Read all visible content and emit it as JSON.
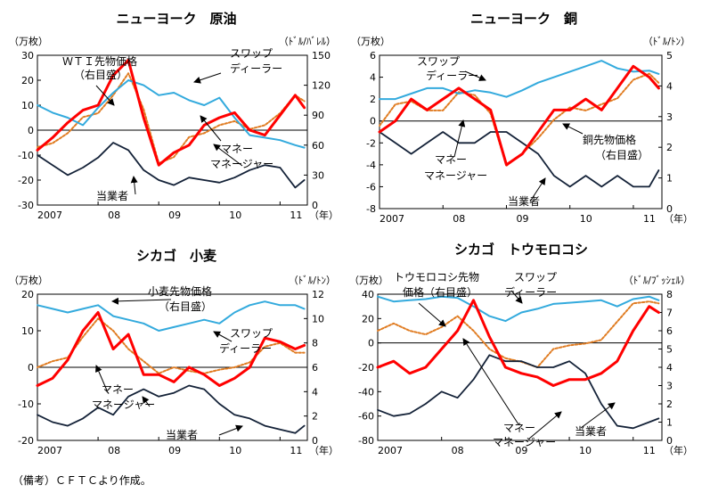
{
  "figure": {
    "note": "（備考）ＣＦＴＣより作成。",
    "x_axis_unit": "（年）",
    "colors": {
      "money_manager": "#ff0000",
      "swap_dealer": "#33aadd",
      "commercial": "#142238",
      "price": "#e07c22",
      "zero_line": "#000000"
    }
  },
  "chart_data": [
    {
      "id": "crude",
      "type": "line",
      "title": "ニューヨーク　原油",
      "left_unit": "（万枚）",
      "right_unit": "（ﾄﾞﾙ/ﾊﾞﾚﾙ）",
      "ylim_left": [
        -30,
        30
      ],
      "ylim_right": [
        0,
        150
      ],
      "yticks_left": [
        "30",
        "20",
        "10",
        "0",
        "-10",
        "-20",
        "-30"
      ],
      "yticks_right": [
        "150",
        "120",
        "90",
        "60",
        "30",
        "0"
      ],
      "xticks": [
        "2007",
        "08",
        "09",
        "10",
        "11"
      ],
      "x": [
        2007.0,
        2007.25,
        2007.5,
        2007.75,
        2008.0,
        2008.25,
        2008.5,
        2008.75,
        2009.0,
        2009.25,
        2009.5,
        2009.75,
        2010.0,
        2010.25,
        2010.5,
        2010.75,
        2011.0,
        2011.25,
        2011.4
      ],
      "series": [
        {
          "key": "money_manager",
          "values": [
            -8,
            -3,
            3,
            8,
            10,
            22,
            28,
            5,
            -14,
            -9,
            -6,
            2,
            5,
            7,
            0,
            -2,
            6,
            14,
            9
          ]
        },
        {
          "key": "swap_dealer",
          "values": [
            10,
            7,
            5,
            2,
            9,
            15,
            20,
            18,
            14,
            15,
            12,
            10,
            13,
            5,
            -2,
            -3,
            -4,
            -6,
            -7
          ]
        },
        {
          "key": "commercial",
          "values": [
            -10,
            -14,
            -18,
            -15,
            -11,
            -5,
            -8,
            -16,
            -20,
            -22,
            -19,
            -20,
            -21,
            -19,
            -16,
            -14,
            -15,
            -23,
            -20
          ]
        },
        {
          "key": "price",
          "axis": "right",
          "values": [
            58,
            62,
            72,
            88,
            92,
            110,
            132,
            96,
            42,
            48,
            68,
            72,
            80,
            84,
            76,
            80,
            92,
            110,
            104
          ]
        }
      ],
      "annotations": [
        "ＷＴＩ先物価格",
        "（右目盛）",
        "スワップ",
        "ディーラー",
        "マネー",
        "マネージャー",
        "当業者"
      ]
    },
    {
      "id": "copper",
      "type": "line",
      "title": "ニューヨーク　銅",
      "left_unit": "（万枚）",
      "right_unit": "（ﾄﾞﾙ/ﾄﾝ）",
      "ylim_left": [
        -8,
        6
      ],
      "ylim_right": [
        0,
        5
      ],
      "yticks_left": [
        "6",
        "4",
        "2",
        "0",
        "-2",
        "-4",
        "-6",
        "-8"
      ],
      "yticks_right": [
        "5",
        "4",
        "3",
        "2",
        "1",
        "0"
      ],
      "xticks": [
        "2007",
        "08",
        "09",
        "10",
        "11"
      ],
      "x": [
        2007.0,
        2007.25,
        2007.5,
        2007.75,
        2008.0,
        2008.25,
        2008.5,
        2008.75,
        2009.0,
        2009.25,
        2009.5,
        2009.75,
        2010.0,
        2010.25,
        2010.5,
        2010.75,
        2011.0,
        2011.25,
        2011.4
      ],
      "series": [
        {
          "key": "money_manager",
          "values": [
            -1,
            0,
            2,
            1,
            2,
            3,
            2,
            1,
            -4,
            -3,
            -1,
            1,
            1,
            2,
            1,
            3,
            5,
            4,
            3
          ]
        },
        {
          "key": "swap_dealer",
          "values": [
            2,
            2,
            2.5,
            3,
            3,
            2.5,
            2.8,
            2.6,
            2.2,
            2.8,
            3.5,
            4,
            4.5,
            5,
            5.5,
            4.8,
            4.5,
            4.6,
            4.3
          ]
        },
        {
          "key": "commercial",
          "values": [
            -1,
            -2,
            -3,
            -2,
            -1,
            -2,
            -2,
            -1,
            -1,
            -2,
            -3,
            -5,
            -6,
            -5,
            -6,
            -5,
            -6,
            -6,
            -4.5
          ]
        },
        {
          "key": "price",
          "axis": "right",
          "values": [
            2.7,
            3.4,
            3.5,
            3.2,
            3.2,
            3.8,
            3.7,
            3.1,
            1.4,
            1.8,
            2.3,
            2.9,
            3.3,
            3.2,
            3.4,
            3.6,
            4.2,
            4.4,
            4.1
          ]
        }
      ],
      "annotations": [
        "スワップ",
        "ディーラー",
        "銅先物価格",
        "（右目盛）",
        "マネー",
        "マネージャー",
        "当業者"
      ]
    },
    {
      "id": "wheat",
      "type": "line",
      "title": "シカゴ　小麦",
      "left_unit": "（万枚）",
      "right_unit": "（ﾄﾞﾙ/ﾄﾝ）",
      "ylim_left": [
        -20,
        20
      ],
      "ylim_right": [
        0,
        12
      ],
      "yticks_left": [
        "20",
        "10",
        "0",
        "-10",
        "-20"
      ],
      "yticks_right": [
        "12",
        "10",
        "8",
        "6",
        "4",
        "2",
        "0"
      ],
      "xticks": [
        "2007",
        "08",
        "09",
        "10",
        "11"
      ],
      "x": [
        2007.0,
        2007.25,
        2007.5,
        2007.75,
        2008.0,
        2008.25,
        2008.5,
        2008.75,
        2009.0,
        2009.25,
        2009.5,
        2009.75,
        2010.0,
        2010.25,
        2010.5,
        2010.75,
        2011.0,
        2011.25,
        2011.4
      ],
      "series": [
        {
          "key": "money_manager",
          "values": [
            -5,
            -3,
            2,
            10,
            15,
            5,
            9,
            -2,
            -2,
            -4,
            0,
            -2,
            -5,
            -3,
            0,
            8,
            7,
            5,
            6
          ]
        },
        {
          "key": "swap_dealer",
          "values": [
            17,
            16,
            15,
            16,
            17,
            14,
            13,
            12,
            10,
            11,
            12,
            13,
            12,
            15,
            17,
            18,
            17,
            17,
            16
          ]
        },
        {
          "key": "commercial",
          "values": [
            -13,
            -15,
            -16,
            -14,
            -11,
            -13,
            -8,
            -6,
            -8,
            -7,
            -5,
            -6,
            -10,
            -13,
            -14,
            -16,
            -17,
            -18,
            -16
          ]
        },
        {
          "key": "price",
          "axis": "right",
          "values": [
            6,
            6.5,
            6.8,
            8.5,
            10,
            9,
            7.5,
            6.5,
            5.5,
            6,
            5.7,
            5.5,
            5.8,
            6,
            6.4,
            7.7,
            8,
            7.2,
            7.2
          ]
        }
      ],
      "annotations": [
        "小麦先物価格",
        "（右目盛）",
        "スワップ",
        "ディーラー",
        "マネー",
        "マネージャー",
        "当業者"
      ]
    },
    {
      "id": "corn",
      "type": "line",
      "title": "シカゴ　トウモロコシ",
      "left_unit": "（万枚）",
      "right_unit": "（ﾄﾞﾙ/ﾌﾞｯｼｪﾙ）",
      "ylim_left": [
        -80,
        40
      ],
      "ylim_right": [
        0,
        8
      ],
      "yticks_left": [
        "40",
        "20",
        "0",
        "-20",
        "-40",
        "-60",
        "-80"
      ],
      "yticks_right": [
        "8",
        "7",
        "6",
        "5",
        "4",
        "3",
        "2",
        "1",
        "0"
      ],
      "xticks": [
        "2007",
        "08",
        "09",
        "10",
        "11"
      ],
      "x": [
        2007.0,
        2007.25,
        2007.5,
        2007.75,
        2008.0,
        2008.25,
        2008.5,
        2008.75,
        2009.0,
        2009.25,
        2009.5,
        2009.75,
        2010.0,
        2010.25,
        2010.5,
        2010.75,
        2011.0,
        2011.25,
        2011.4
      ],
      "series": [
        {
          "key": "money_manager",
          "values": [
            -20,
            -15,
            -25,
            -20,
            -5,
            10,
            35,
            5,
            -20,
            -25,
            -28,
            -35,
            -30,
            -30,
            -25,
            -15,
            10,
            30,
            25
          ]
        },
        {
          "key": "swap_dealer",
          "values": [
            38,
            34,
            35,
            36,
            38,
            37,
            30,
            22,
            18,
            25,
            28,
            32,
            33,
            34,
            35,
            30,
            36,
            38,
            35
          ]
        },
        {
          "key": "commercial",
          "values": [
            -55,
            -60,
            -58,
            -50,
            -40,
            -45,
            -30,
            -10,
            -15,
            -15,
            -20,
            -20,
            -15,
            -25,
            -50,
            -68,
            -70,
            -65,
            -62
          ]
        },
        {
          "key": "price",
          "axis": "right",
          "values": [
            6,
            6.4,
            6,
            5.8,
            6.2,
            6.8,
            6,
            5,
            4.5,
            4.3,
            4,
            5,
            5.2,
            5.3,
            5.5,
            6.5,
            7.5,
            7.6,
            7.5
          ]
        }
      ],
      "annotations": [
        "トウモロコシ先物",
        "価格（右目盛）",
        "スワップ",
        "ディーラー",
        "マネー",
        "マネージャー",
        "当業者"
      ]
    }
  ]
}
